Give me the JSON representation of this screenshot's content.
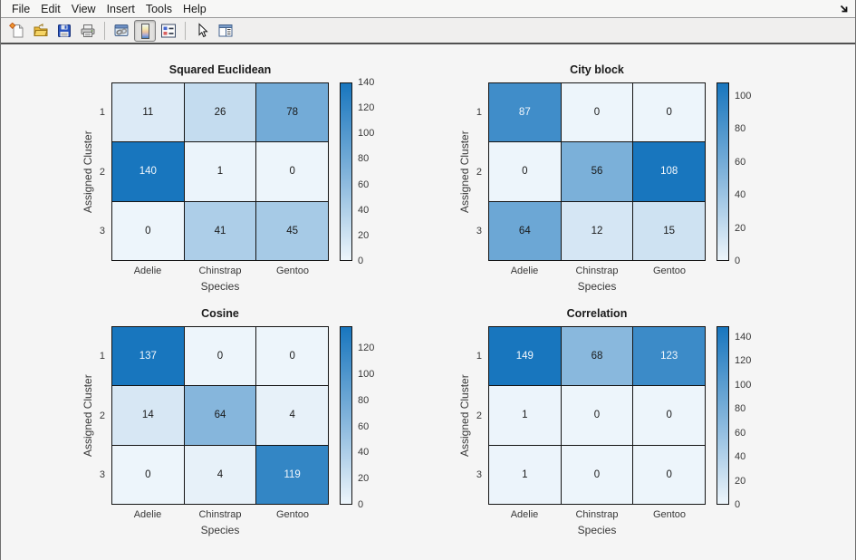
{
  "menu": {
    "items": [
      "File",
      "Edit",
      "View",
      "Insert",
      "Tools",
      "Help"
    ]
  },
  "toolbar": {
    "icons": [
      "new-figure-icon",
      "open-file-icon",
      "save-figure-icon",
      "print-figure-icon",
      "link-plot-icon",
      "insert-colorbar-icon",
      "insert-legend-icon",
      "edit-plot-arrow-icon",
      "property-inspector-icon"
    ],
    "active_icon": "insert-colorbar-icon"
  },
  "window": {
    "dock_icon": "dock-figure-arrow-icon"
  },
  "colors": {
    "colormap_low": "#edf5fb",
    "colormap_mid": "#7fb2da",
    "colormap_high": "#1876be",
    "cell_text_dark": "#1a1a1a",
    "cell_text_light": "#f2f7fc",
    "white_text_threshold": 0.7,
    "canvas_bg": "#f5f5f5",
    "grid_line": "#141414"
  },
  "chart_data": [
    {
      "type": "heatmap",
      "title": "Squared Euclidean",
      "xlabel": "Species",
      "ylabel": "Assigned Cluster",
      "categories": [
        "Adelie",
        "Chinstrap",
        "Gentoo"
      ],
      "row_labels": [
        "1",
        "2",
        "3"
      ],
      "values": [
        [
          11,
          26,
          78
        ],
        [
          140,
          1,
          0
        ],
        [
          0,
          41,
          45
        ]
      ],
      "vmin": 0,
      "vmax": 140,
      "colorbar_ticks": [
        0,
        20,
        40,
        60,
        80,
        100,
        120,
        140
      ],
      "legend_position": "colorbar-right",
      "grid": true
    },
    {
      "type": "heatmap",
      "title": "City block",
      "xlabel": "Species",
      "ylabel": "Assigned Cluster",
      "categories": [
        "Adelie",
        "Chinstrap",
        "Gentoo"
      ],
      "row_labels": [
        "1",
        "2",
        "3"
      ],
      "values": [
        [
          87,
          0,
          0
        ],
        [
          0,
          56,
          108
        ],
        [
          64,
          12,
          15
        ]
      ],
      "vmin": 0,
      "vmax": 108,
      "colorbar_ticks": [
        0,
        20,
        40,
        60,
        80,
        100
      ],
      "legend_position": "colorbar-right",
      "grid": true
    },
    {
      "type": "heatmap",
      "title": "Cosine",
      "xlabel": "Species",
      "ylabel": "Assigned Cluster",
      "categories": [
        "Adelie",
        "Chinstrap",
        "Gentoo"
      ],
      "row_labels": [
        "1",
        "2",
        "3"
      ],
      "values": [
        [
          137,
          0,
          0
        ],
        [
          14,
          64,
          4
        ],
        [
          0,
          4,
          119
        ]
      ],
      "vmin": 0,
      "vmax": 137,
      "colorbar_ticks": [
        0,
        20,
        40,
        60,
        80,
        100,
        120
      ],
      "legend_position": "colorbar-right",
      "grid": true
    },
    {
      "type": "heatmap",
      "title": "Correlation",
      "xlabel": "Species",
      "ylabel": "Assigned Cluster",
      "categories": [
        "Adelie",
        "Chinstrap",
        "Gentoo"
      ],
      "row_labels": [
        "1",
        "2",
        "3"
      ],
      "values": [
        [
          149,
          68,
          123
        ],
        [
          1,
          0,
          0
        ],
        [
          1,
          0,
          0
        ]
      ],
      "vmin": 0,
      "vmax": 149,
      "colorbar_ticks": [
        0,
        20,
        40,
        60,
        80,
        100,
        120,
        140
      ],
      "legend_position": "colorbar-right",
      "grid": true
    }
  ]
}
